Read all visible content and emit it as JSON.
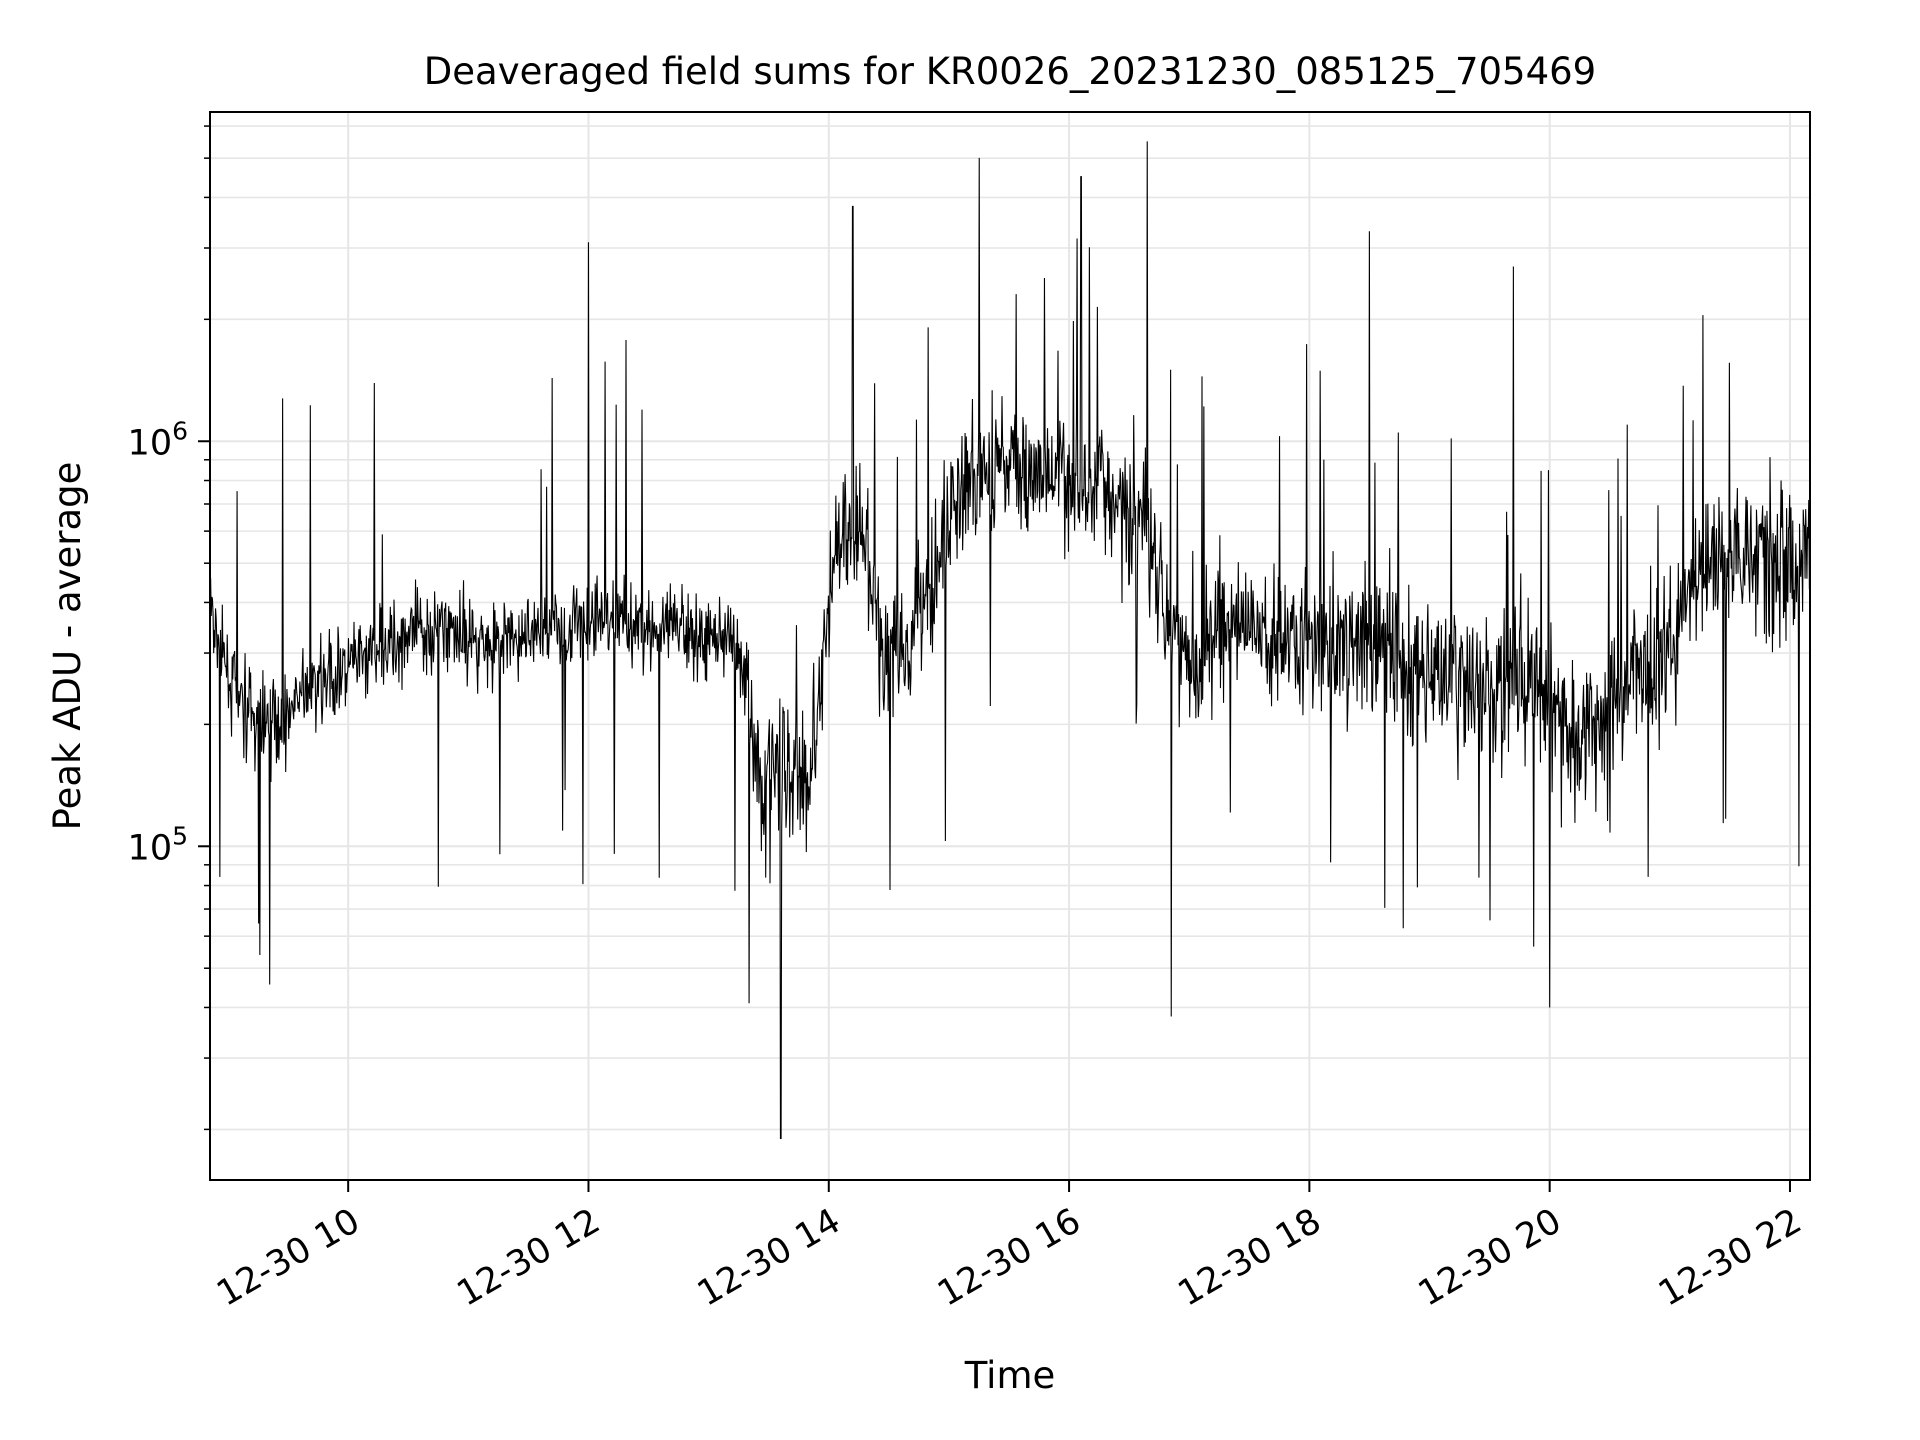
{
  "chart_data": {
    "type": "line",
    "title": "Deaveraged field sums for KR0026_20231230_085125_705469",
    "xlabel": "Time",
    "ylabel": "Peak ADU - average",
    "y_scale": "log",
    "x_range": [
      "2023-12-30 08:51",
      "2023-12-30 22:10"
    ],
    "ylim": [
      15000,
      6500000
    ],
    "x_tick_labels": [
      "12-30 10",
      "12-30 12",
      "12-30 14",
      "12-30 16",
      "12-30 18",
      "12-30 20",
      "12-30 22"
    ],
    "x_ticks": [
      "2023-12-30 10:00",
      "2023-12-30 12:00",
      "2023-12-30 14:00",
      "2023-12-30 16:00",
      "2023-12-30 18:00",
      "2023-12-30 20:00",
      "2023-12-30 22:00"
    ],
    "y_ticks": [
      {
        "value": 100000,
        "base": "10",
        "exp": "5"
      },
      {
        "value": 1000000,
        "base": "10",
        "exp": "6"
      }
    ],
    "grid": true,
    "line_color": "#000000",
    "grid_color": "#e6e6e6",
    "series": [
      {
        "x": [
          "2023-12-30 08:51",
          "2023-12-30 09:03",
          "2023-12-30 09:15",
          "2023-12-30 09:27",
          "2023-12-30 09:39",
          "2023-12-30 09:51",
          "2023-12-30 10:03",
          "2023-12-30 10:15",
          "2023-12-30 10:27",
          "2023-12-30 10:39",
          "2023-12-30 10:51",
          "2023-12-30 11:03",
          "2023-12-30 11:15",
          "2023-12-30 11:27",
          "2023-12-30 11:39",
          "2023-12-30 11:51",
          "2023-12-30 12:03",
          "2023-12-30 12:15",
          "2023-12-30 12:27",
          "2023-12-30 12:39",
          "2023-12-30 12:51",
          "2023-12-30 13:03",
          "2023-12-30 13:15",
          "2023-12-30 13:27",
          "2023-12-30 13:39",
          "2023-12-30 13:51",
          "2023-12-30 14:03",
          "2023-12-30 14:15",
          "2023-12-30 14:27",
          "2023-12-30 14:39",
          "2023-12-30 14:51",
          "2023-12-30 15:03",
          "2023-12-30 15:15",
          "2023-12-30 15:27",
          "2023-12-30 15:39",
          "2023-12-30 15:51",
          "2023-12-30 16:03",
          "2023-12-30 16:15",
          "2023-12-30 16:27",
          "2023-12-30 16:39",
          "2023-12-30 16:51",
          "2023-12-30 17:03",
          "2023-12-30 17:15",
          "2023-12-30 17:27",
          "2023-12-30 17:39",
          "2023-12-30 17:51",
          "2023-12-30 18:03",
          "2023-12-30 18:15",
          "2023-12-30 18:27",
          "2023-12-30 18:39",
          "2023-12-30 18:51",
          "2023-12-30 19:03",
          "2023-12-30 19:15",
          "2023-12-30 19:27",
          "2023-12-30 19:39",
          "2023-12-30 19:51",
          "2023-12-30 20:03",
          "2023-12-30 20:15",
          "2023-12-30 20:27",
          "2023-12-30 20:39",
          "2023-12-30 20:51",
          "2023-12-30 21:03",
          "2023-12-30 21:15",
          "2023-12-30 21:27",
          "2023-12-30 21:39",
          "2023-12-30 21:51",
          "2023-12-30 22:03",
          "2023-12-30 22:10"
        ],
        "values": [
          380000,
          240000,
          200000,
          210000,
          240000,
          260000,
          280000,
          300000,
          330000,
          340000,
          350000,
          330000,
          320000,
          330000,
          340000,
          350000,
          360000,
          370000,
          350000,
          340000,
          340000,
          330000,
          320000,
          140000,
          160000,
          150000,
          550000,
          600000,
          300000,
          320000,
          450000,
          700000,
          800000,
          900000,
          850000,
          800000,
          750000,
          800000,
          700000,
          650000,
          350000,
          300000,
          330000,
          350000,
          320000,
          350000,
          300000,
          310000,
          330000,
          320000,
          280000,
          260000,
          250000,
          240000,
          250000,
          260000,
          200000,
          180000,
          200000,
          250000,
          300000,
          350000,
          450000,
          550000,
          550000,
          500000,
          500000,
          550000
        ]
      }
    ],
    "notable_extremes": [
      {
        "x": "2023-12-30 12:00",
        "value": 3100000
      },
      {
        "x": "2023-12-30 13:36",
        "value": 19000
      },
      {
        "x": "2023-12-30 14:12",
        "value": 3800000
      },
      {
        "x": "2023-12-30 16:06",
        "value": 4500000
      },
      {
        "x": "2023-12-30 16:39",
        "value": 5500000
      },
      {
        "x": "2023-12-30 16:51",
        "value": 38000
      },
      {
        "x": "2023-12-30 18:30",
        "value": 3300000
      },
      {
        "x": "2023-12-30 19:42",
        "value": 2700000
      },
      {
        "x": "2023-12-30 20:00",
        "value": 40000
      }
    ]
  }
}
